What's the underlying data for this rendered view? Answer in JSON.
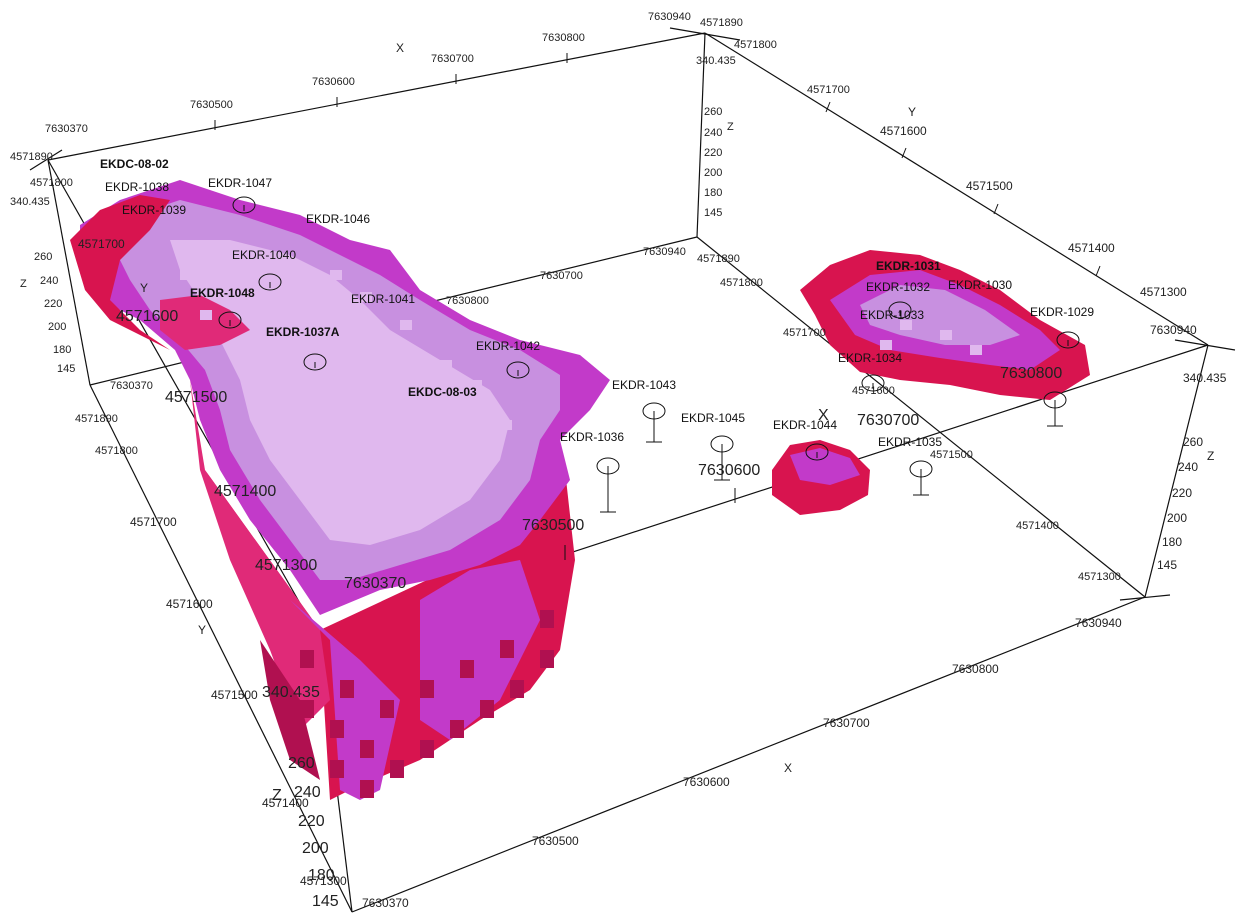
{
  "box_labels": {
    "x_near": [
      "7630370",
      "7630500",
      "7630600",
      "7630700",
      "7630800",
      "7630940"
    ],
    "x_far": [
      "7630370",
      "7630500",
      "7630600",
      "7630700",
      "7630800",
      "7630940"
    ],
    "x_mid": [
      "7630370",
      "7630500",
      "7630600",
      "7630700",
      "7630800",
      "7630940"
    ],
    "y_left": [
      "4571890",
      "4571800",
      "4571700",
      "4571600",
      "4571500",
      "4571400",
      "4571300"
    ],
    "y_right": [
      "4571890",
      "4571800",
      "4571700",
      "4571600",
      "4571500",
      "4571400",
      "4571300"
    ],
    "y_mid_left": [
      "4571890",
      "4571800",
      "4571700",
      "4571600",
      "4571500",
      "4571400",
      "4571300"
    ],
    "y_mid_right": [
      "4571890",
      "4571800",
      "4571700",
      "4571600",
      "4571500",
      "4571400",
      "4571300"
    ],
    "z_values": [
      "340.435",
      "260",
      "240",
      "220",
      "200",
      "180",
      "145"
    ],
    "axis_x": "X",
    "axis_y": "Y",
    "axis_z": "Z"
  },
  "drillholes": [
    {
      "label": "EKDC-08-02",
      "bold": true
    },
    {
      "label": "EKDR-1038"
    },
    {
      "label": "EKDR-1039"
    },
    {
      "label": "EKDR-1047"
    },
    {
      "label": "EKDR-1046"
    },
    {
      "label": "EKDR-1040"
    },
    {
      "label": "EKDR-1048",
      "bold": true
    },
    {
      "label": "EKDR-1041"
    },
    {
      "label": "EKDR-1037A",
      "bold": true
    },
    {
      "label": "EKDR-1042"
    },
    {
      "label": "EKDC-08-03",
      "bold": true
    },
    {
      "label": "EKDR-1043"
    },
    {
      "label": "EKDR-1036"
    },
    {
      "label": "EKDR-1045"
    },
    {
      "label": "EKDR-1044"
    },
    {
      "label": "EKDR-1035"
    },
    {
      "label": "EKDR-1031",
      "bold": true
    },
    {
      "label": "EKDR-1032"
    },
    {
      "label": "EKDR-1030"
    },
    {
      "label": "EKDR-1033"
    },
    {
      "label": "EKDR-1029"
    },
    {
      "label": "EKDR-1034"
    }
  ],
  "colors": {
    "voxel_top": "#c890e0",
    "voxel_top_light": "#e0b8ee",
    "voxel_magenta": "#c23ac9",
    "voxel_pink": "#e02a78",
    "voxel_red": "#d8144f",
    "voxel_dark": "#b01050",
    "edge": "#111111"
  }
}
